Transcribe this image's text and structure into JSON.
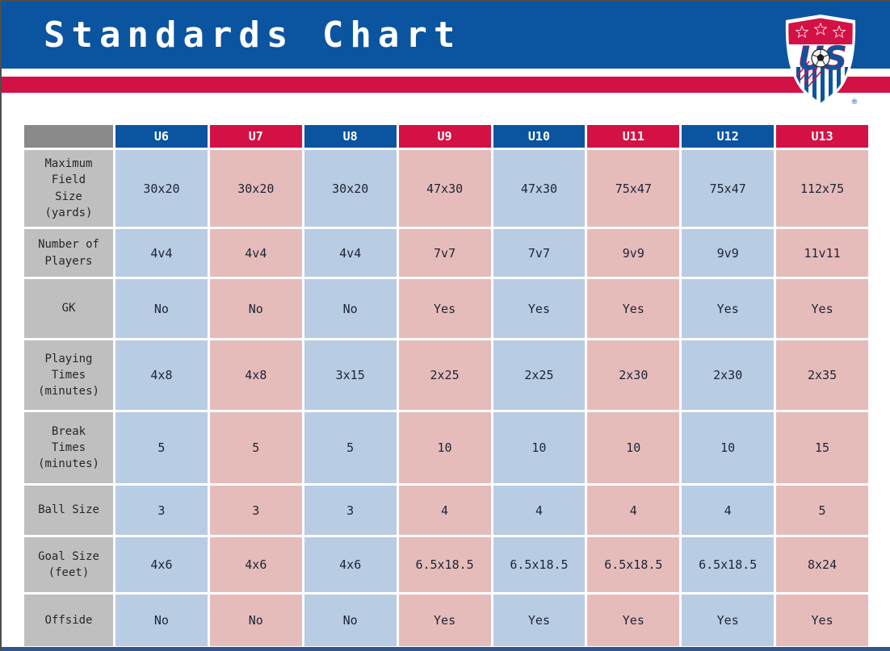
{
  "page": {
    "title": "Standards Chart"
  },
  "logo": {
    "name": "us-soccer-crest",
    "registered_mark": "®"
  },
  "colors": {
    "banner_blue": "#0b54a0",
    "accent_red": "#d31145",
    "cell_blue": "#b8cce4",
    "cell_pink": "#e6bcbb",
    "row_label_gray": "#bfbfbf",
    "corner_gray": "#8a8a8a",
    "bottom_bar_blue": "#30568f"
  },
  "table": {
    "columns": [
      {
        "label": "U6",
        "color": "blue"
      },
      {
        "label": "U7",
        "color": "red"
      },
      {
        "label": "U8",
        "color": "blue"
      },
      {
        "label": "U9",
        "color": "red"
      },
      {
        "label": "U10",
        "color": "blue"
      },
      {
        "label": "U11",
        "color": "red"
      },
      {
        "label": "U12",
        "color": "blue"
      },
      {
        "label": "U13",
        "color": "red"
      }
    ],
    "rows": [
      {
        "label": "Maximum\nField\nSize\n(yards)",
        "values": [
          "30x20",
          "30x20",
          "30x20",
          "47x30",
          "47x30",
          "75x47",
          "75x47",
          "112x75"
        ]
      },
      {
        "label": "Number of\nPlayers",
        "values": [
          "4v4",
          "4v4",
          "4v4",
          "7v7",
          "7v7",
          "9v9",
          "9v9",
          "11v11"
        ]
      },
      {
        "label": "GK",
        "values": [
          "No",
          "No",
          "No",
          "Yes",
          "Yes",
          "Yes",
          "Yes",
          "Yes"
        ]
      },
      {
        "label": "Playing\nTimes\n(minutes)",
        "values": [
          "4x8",
          "4x8",
          "3x15",
          "2x25",
          "2x25",
          "2x30",
          "2x30",
          "2x35"
        ]
      },
      {
        "label": "Break\nTimes\n(minutes)",
        "values": [
          "5",
          "5",
          "5",
          "10",
          "10",
          "10",
          "10",
          "15"
        ]
      },
      {
        "label": "Ball Size",
        "values": [
          "3",
          "3",
          "3",
          "4",
          "4",
          "4",
          "4",
          "5"
        ]
      },
      {
        "label": "Goal Size\n(feet)",
        "values": [
          "4x6",
          "4x6",
          "4x6",
          "6.5x18.5",
          "6.5x18.5",
          "6.5x18.5",
          "6.5x18.5",
          "8x24"
        ]
      },
      {
        "label": "Offside",
        "values": [
          "No",
          "No",
          "No",
          "Yes",
          "Yes",
          "Yes",
          "Yes",
          "Yes"
        ]
      }
    ]
  }
}
